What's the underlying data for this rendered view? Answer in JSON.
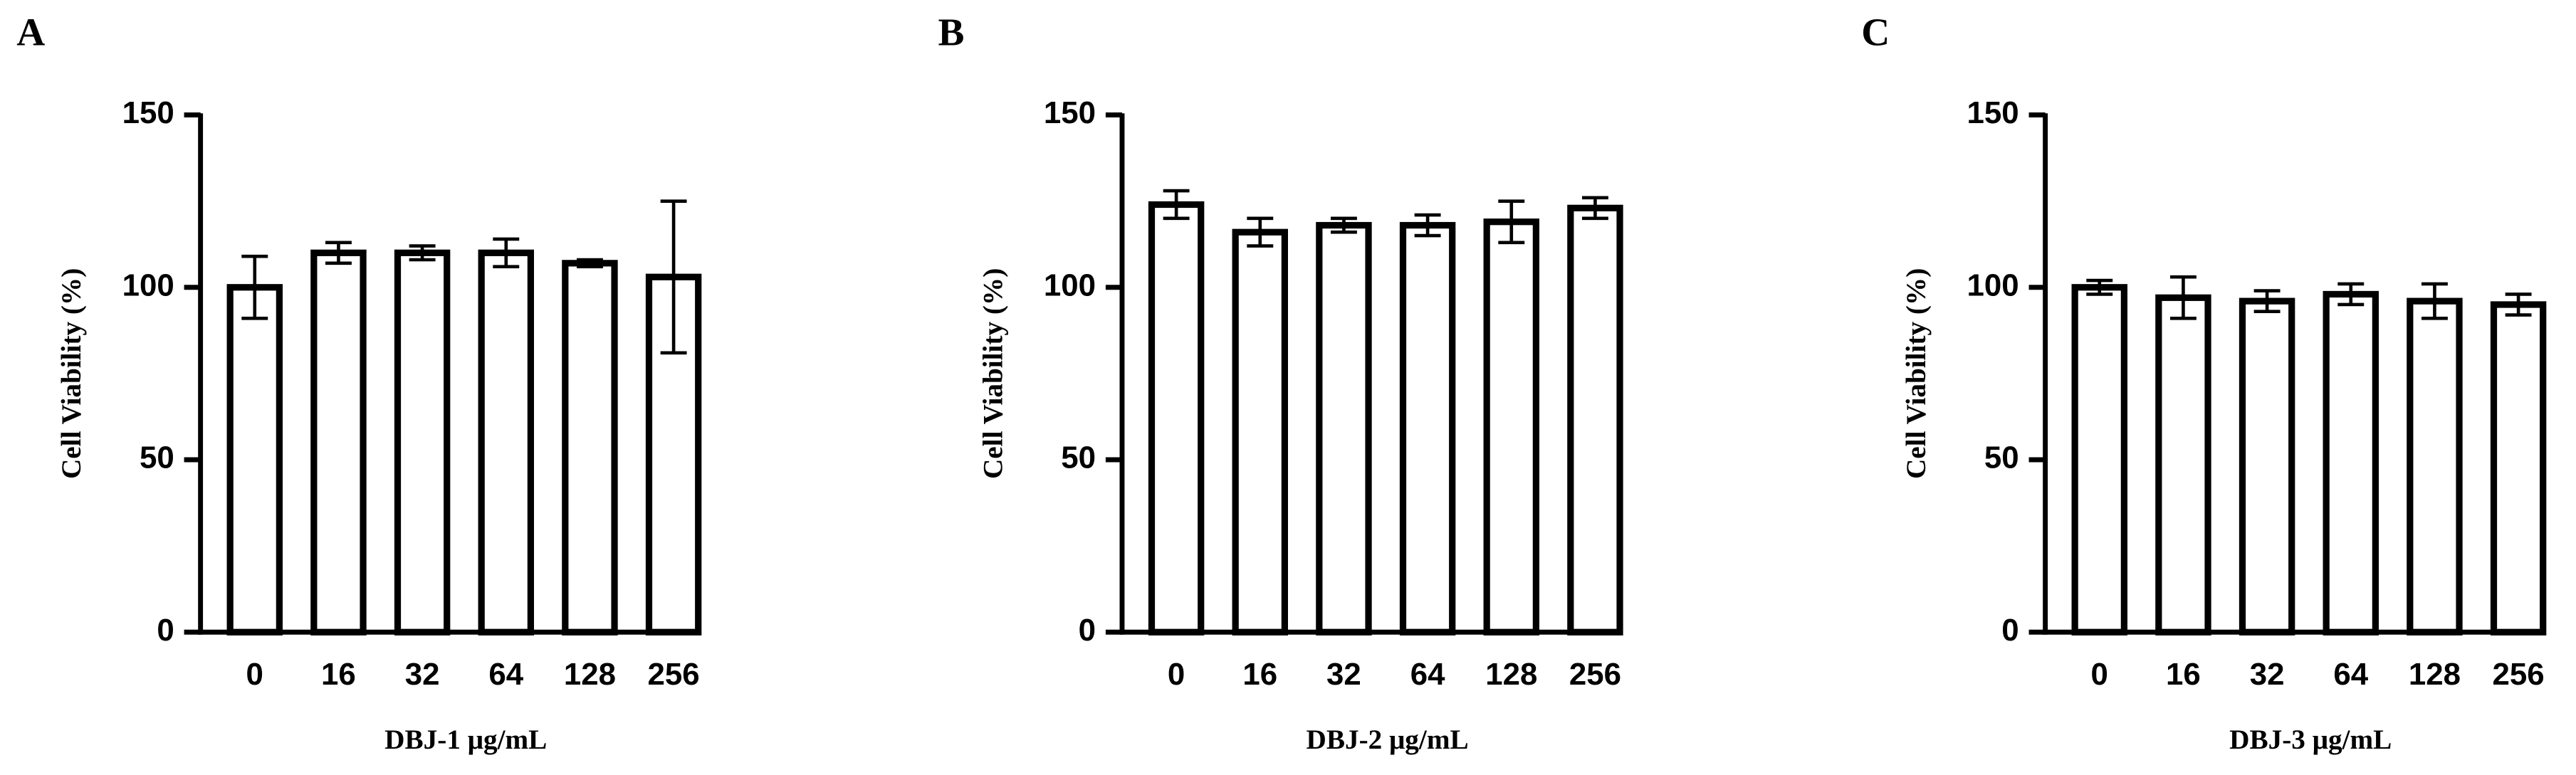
{
  "chart_data": [
    {
      "type": "bar",
      "panel_label": "A",
      "ylabel": "Cell Viability (%)",
      "xlabel": "DBJ-1 μg/mL",
      "categories": [
        "0",
        "16",
        "32",
        "64",
        "128",
        "256"
      ],
      "values": [
        100,
        110,
        110,
        110,
        107,
        103
      ],
      "errors": [
        9,
        3,
        2,
        4,
        1,
        22
      ],
      "color": "#ffffff",
      "ylim": [
        0,
        150
      ],
      "yticks": [
        0,
        50,
        100,
        150
      ]
    },
    {
      "type": "bar",
      "panel_label": "B",
      "ylabel": "Cell Viability (%)",
      "xlabel": "DBJ-2 μg/mL",
      "categories": [
        "0",
        "16",
        "32",
        "64",
        "128",
        "256"
      ],
      "values": [
        124,
        116,
        118,
        118,
        119,
        123
      ],
      "errors": [
        4,
        4,
        2,
        3,
        6,
        3
      ],
      "color": "#ffffff",
      "ylim": [
        0,
        150
      ],
      "yticks": [
        0,
        50,
        100,
        150
      ]
    },
    {
      "type": "bar",
      "panel_label": "C",
      "ylabel": "Cell Viability (%)",
      "xlabel": "DBJ-3 μg/mL",
      "categories": [
        "0",
        "16",
        "32",
        "64",
        "128",
        "256"
      ],
      "values": [
        100,
        97,
        96,
        98,
        96,
        95
      ],
      "errors": [
        2,
        6,
        3,
        3,
        5,
        3
      ],
      "color": "#ffffff",
      "ylim": [
        0,
        150
      ],
      "yticks": [
        0,
        50,
        100,
        150
      ]
    }
  ]
}
